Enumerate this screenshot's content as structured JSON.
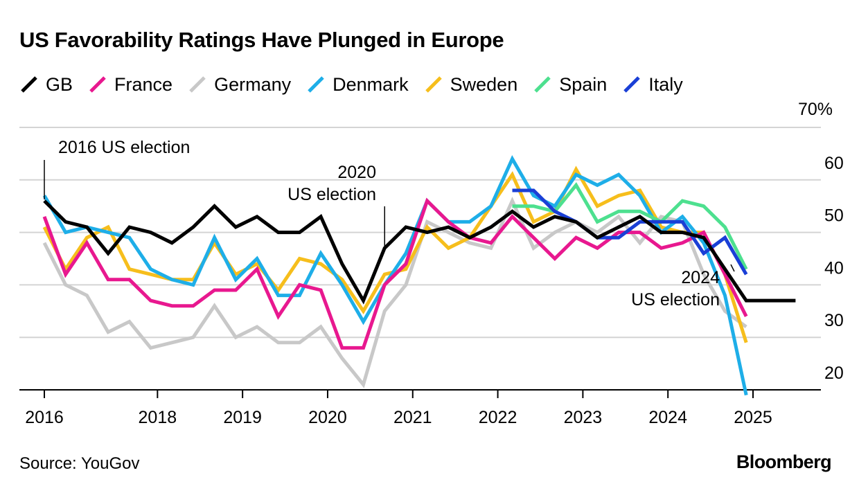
{
  "title": "US Favorability Ratings Have Plunged in Europe",
  "source": "Source: YouGov",
  "brand": "Bloomberg",
  "chart_data": {
    "type": "line",
    "y_unit_label": "70%",
    "ylim": [
      20,
      70
    ],
    "yticks": [
      20,
      30,
      40,
      50,
      60,
      70
    ],
    "xlim": [
      2016,
      2025
    ],
    "x_ticks": [
      {
        "label": "2016",
        "value": 2016.0
      },
      {
        "label": "2018",
        "value": 2017.33
      },
      {
        "label": "2019",
        "value": 2018.33
      },
      {
        "label": "2020",
        "value": 2019.33
      },
      {
        "label": "2021",
        "value": 2020.33
      },
      {
        "label": "2022",
        "value": 2021.33
      },
      {
        "label": "2023",
        "value": 2022.33
      },
      {
        "label": "2024",
        "value": 2023.33
      },
      {
        "label": "2025",
        "value": 2024.33
      }
    ],
    "grid": true,
    "legend_position": "top",
    "annotations": [
      {
        "lines": [
          "2016 US election"
        ],
        "x": 2016.0
      },
      {
        "lines": [
          "2020",
          "US election"
        ],
        "x": 2020.0
      },
      {
        "lines": [
          "2024",
          "US election"
        ],
        "x": 2024.25
      }
    ],
    "series": [
      {
        "name": "GB",
        "color": "#000000",
        "x": [
          2016.0,
          2016.25,
          2016.5,
          2016.75,
          2017.0,
          2017.25,
          2017.5,
          2017.75,
          2018.0,
          2018.25,
          2018.5,
          2018.75,
          2019.0,
          2019.25,
          2019.5,
          2019.75,
          2020.0,
          2020.25,
          2020.5,
          2020.75,
          2021.0,
          2021.25,
          2021.5,
          2021.75,
          2022.0,
          2022.25,
          2022.5,
          2022.75,
          2023.0,
          2023.25,
          2023.5,
          2023.75,
          2024.0,
          2024.25,
          2024.5,
          2024.65,
          2024.83
        ],
        "values": [
          56,
          52,
          51,
          46,
          51,
          50,
          48,
          51,
          55,
          51,
          53,
          50,
          50,
          53,
          44,
          37,
          47,
          51,
          50,
          51,
          49,
          51,
          54,
          51,
          53,
          52,
          49,
          51,
          53,
          50,
          50,
          49,
          43,
          37,
          37,
          37,
          37
        ]
      },
      {
        "name": "France",
        "color": "#e8188f",
        "x": [
          2016.0,
          2016.25,
          2016.5,
          2016.75,
          2017.0,
          2017.25,
          2017.5,
          2017.75,
          2018.0,
          2018.25,
          2018.5,
          2018.75,
          2019.0,
          2019.25,
          2019.5,
          2019.75,
          2020.0,
          2020.25,
          2020.5,
          2020.75,
          2021.0,
          2021.25,
          2021.5,
          2021.75,
          2022.0,
          2022.25,
          2022.5,
          2022.75,
          2023.0,
          2023.25,
          2023.5,
          2023.75,
          2024.0,
          2024.25
        ],
        "values": [
          53,
          42,
          48,
          41,
          41,
          37,
          36,
          36,
          39,
          39,
          43,
          34,
          40,
          39,
          28,
          28,
          40,
          44,
          56,
          52,
          49,
          48,
          53,
          49,
          45,
          49,
          47,
          50,
          50,
          47,
          48,
          50,
          42,
          34
        ]
      },
      {
        "name": "Germany",
        "color": "#c8c8c8",
        "x": [
          2016.0,
          2016.25,
          2016.5,
          2016.75,
          2017.0,
          2017.25,
          2017.5,
          2017.75,
          2018.0,
          2018.25,
          2018.5,
          2018.75,
          2019.0,
          2019.25,
          2019.5,
          2019.75,
          2020.0,
          2020.25,
          2020.5,
          2020.75,
          2021.0,
          2021.25,
          2021.5,
          2021.75,
          2022.0,
          2022.25,
          2022.5,
          2022.75,
          2023.0,
          2023.25,
          2023.5,
          2023.75,
          2024.0,
          2024.25
        ],
        "values": [
          48,
          40,
          38,
          31,
          33,
          28,
          29,
          30,
          36,
          30,
          32,
          29,
          29,
          32,
          26,
          21,
          35,
          40,
          52,
          50,
          48,
          47,
          56,
          47,
          50,
          52,
          50,
          53,
          48,
          53,
          52,
          42,
          35,
          32
        ]
      },
      {
        "name": "Denmark",
        "color": "#1eaee8",
        "x": [
          2016.0,
          2016.25,
          2016.5,
          2016.75,
          2017.0,
          2017.25,
          2017.5,
          2017.75,
          2018.0,
          2018.25,
          2018.5,
          2018.75,
          2019.0,
          2019.25,
          2019.5,
          2019.75,
          2020.0,
          2020.25,
          2020.5,
          2020.75,
          2021.0,
          2021.25,
          2021.5,
          2021.75,
          2022.0,
          2022.25,
          2022.5,
          2022.75,
          2023.0,
          2023.25,
          2023.5,
          2023.75,
          2024.0,
          2024.25
        ],
        "values": [
          57,
          50,
          51,
          50,
          49,
          43,
          41,
          40,
          49,
          41,
          45,
          38,
          38,
          46,
          40,
          33,
          40,
          46,
          56,
          52,
          52,
          55,
          64,
          57,
          55,
          61,
          59,
          61,
          57,
          50,
          53,
          48,
          38,
          19
        ]
      },
      {
        "name": "Sweden",
        "color": "#f6be1c",
        "x": [
          2016.0,
          2016.25,
          2016.5,
          2016.75,
          2017.0,
          2017.25,
          2017.5,
          2017.75,
          2018.0,
          2018.25,
          2018.5,
          2018.75,
          2019.0,
          2019.25,
          2019.5,
          2019.75,
          2020.0,
          2020.25,
          2020.5,
          2020.75,
          2021.0,
          2021.25,
          2021.5,
          2021.75,
          2022.0,
          2022.25,
          2022.5,
          2022.75,
          2023.0,
          2023.25,
          2023.5,
          2023.75,
          2024.0,
          2024.25
        ],
        "values": [
          51,
          43,
          49,
          51,
          43,
          42,
          41,
          41,
          48,
          42,
          44,
          39,
          45,
          44,
          41,
          35,
          42,
          43,
          51,
          47,
          49,
          55,
          61,
          52,
          54,
          62,
          55,
          57,
          58,
          51,
          50,
          50,
          42,
          29
        ]
      },
      {
        "name": "Spain",
        "color": "#4de08f",
        "x": [
          2021.5,
          2021.75,
          2022.0,
          2022.25,
          2022.5,
          2022.75,
          2023.0,
          2023.25,
          2023.5,
          2023.75,
          2024.0,
          2024.25
        ],
        "values": [
          55,
          55,
          54,
          59,
          52,
          54,
          54,
          52,
          56,
          55,
          51,
          43
        ]
      },
      {
        "name": "Italy",
        "color": "#1a3fd6",
        "x": [
          2021.5,
          2021.75,
          2022.0,
          2022.25,
          2022.5,
          2022.75,
          2023.0,
          2023.25,
          2023.5,
          2023.75,
          2024.0,
          2024.25
        ],
        "values": [
          58,
          58,
          54,
          52,
          49,
          49,
          52,
          52,
          52,
          46,
          49,
          42
        ]
      }
    ]
  }
}
